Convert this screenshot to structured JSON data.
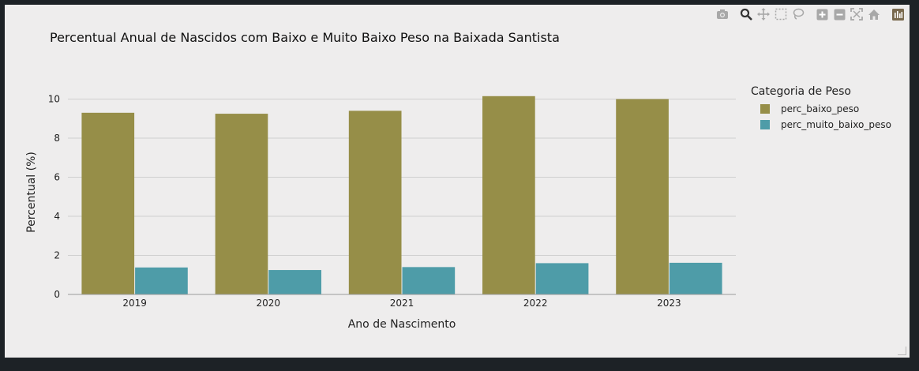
{
  "modebar": {
    "buttons": [
      "camera-icon",
      "zoom-icon",
      "pan-icon",
      "box-select-icon",
      "lasso-select-icon",
      "zoom-in-icon",
      "zoom-out-icon",
      "autoscale-icon",
      "reset-axes-icon",
      "plotly-logo-icon"
    ]
  },
  "colors": {
    "background": "#eeeded",
    "grid": "#cfcfcf",
    "series1": "#968e48",
    "series2": "#4e9ca8"
  },
  "chart_data": {
    "type": "bar",
    "title": "Percentual Anual de Nascidos com Baixo e Muito Baixo Peso na Baixada Santista",
    "xlabel": "Ano de Nascimento",
    "ylabel": "Percentual (%)",
    "categories": [
      "2019",
      "2020",
      "2021",
      "2022",
      "2023"
    ],
    "series": [
      {
        "name": "perc_baixo_peso",
        "values": [
          9.3,
          9.25,
          9.4,
          10.15,
          10.0
        ]
      },
      {
        "name": "perc_muito_baixo_peso",
        "values": [
          1.38,
          1.25,
          1.4,
          1.6,
          1.62
        ]
      }
    ],
    "ylim": [
      0,
      10.95
    ],
    "yticks": [
      "0",
      "2",
      "4",
      "6",
      "8",
      "10"
    ],
    "grid": true,
    "legend": {
      "title": "Categoria de Peso",
      "placement": "right"
    }
  }
}
